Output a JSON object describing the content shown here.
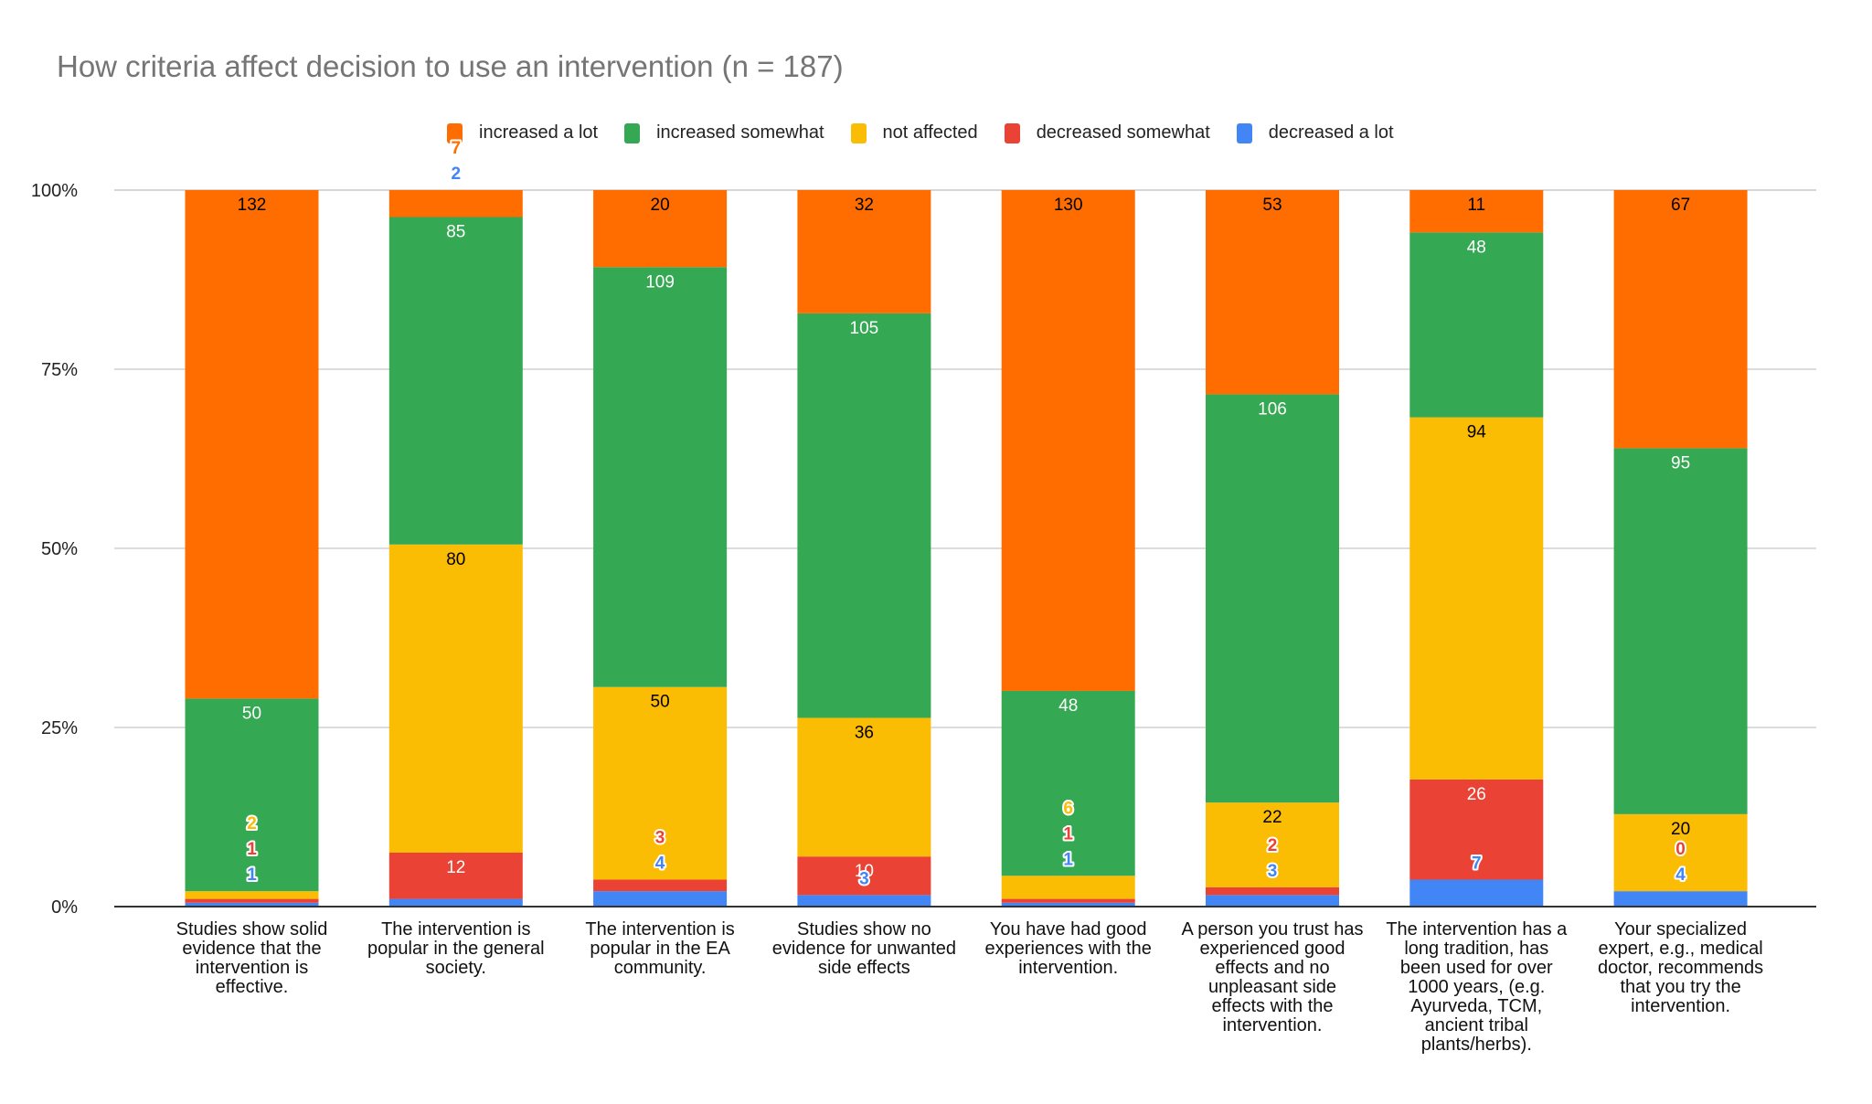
{
  "chart_data": {
    "type": "bar",
    "stacked": "percent",
    "title": "How criteria affect decision to use an intervention (n = 187)",
    "xlabel": "",
    "ylabel": "",
    "ylim": [
      0,
      100
    ],
    "yticks": [
      "0%",
      "25%",
      "50%",
      "75%",
      "100%"
    ],
    "grid": true,
    "legend_position": "top",
    "categories": [
      "Studies show solid evidence that the intervention is effective.",
      "The intervention is popular in the general society.",
      "The intervention is popular in the EA community.",
      "Studies show no evidence for unwanted side effects",
      "You have had good experiences with the intervention.",
      "A person you trust has experienced good effects and no unpleasant side effects with the intervention.",
      "The intervention has a long tradition, has been used for over 1000 years, (e.g. Ayurveda, TCM, ancient tribal plants/herbs).",
      "Your specialized expert, e.g., medical doctor, recommends that you try the intervention."
    ],
    "category_lines": [
      [
        "Studies show solid",
        "evidence that the",
        "intervention is",
        "effective."
      ],
      [
        "The intervention is",
        "popular in the general",
        "society."
      ],
      [
        "The intervention is",
        "popular in the EA",
        "community."
      ],
      [
        "Studies show no",
        "evidence for unwanted",
        "side effects"
      ],
      [
        "You have had good",
        "experiences with the",
        "intervention."
      ],
      [
        "A person you trust has",
        "experienced good",
        "effects and no",
        "unpleasant side",
        "effects with the",
        "intervention."
      ],
      [
        "The intervention has a",
        "long tradition, has",
        "been used for over",
        "1000 years, (e.g.",
        "Ayurveda, TCM,",
        "ancient tribal",
        "plants/herbs)."
      ],
      [
        "Your specialized",
        "expert, e.g., medical",
        "doctor, recommends",
        "that you try the",
        "intervention."
      ]
    ],
    "series": [
      {
        "name": "increased a lot",
        "color": "#FF6D01",
        "label_color": "#000000",
        "values": [
          132,
          7,
          20,
          32,
          130,
          53,
          11,
          67
        ]
      },
      {
        "name": "increased somewhat",
        "color": "#34A853",
        "label_color": "#FFFFFF",
        "values": [
          50,
          85,
          109,
          105,
          48,
          106,
          48,
          95
        ]
      },
      {
        "name": "not affected",
        "color": "#FBBC04",
        "label_color": "#000000",
        "values": [
          2,
          80,
          50,
          36,
          6,
          22,
          94,
          20
        ]
      },
      {
        "name": "decreased somewhat",
        "color": "#EA4335",
        "label_color": "#FFFFFF",
        "values": [
          1,
          12,
          3,
          10,
          1,
          2,
          26,
          0
        ]
      },
      {
        "name": "decreased a lot",
        "color": "#4285F4",
        "label_color": "#FFFFFF",
        "values": [
          1,
          2,
          4,
          3,
          1,
          3,
          7,
          4
        ]
      }
    ]
  }
}
